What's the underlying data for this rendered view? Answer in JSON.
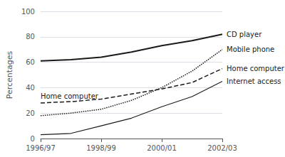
{
  "chart_data": {
    "type": "line",
    "categories": [
      "1996/97",
      null,
      "1998/99",
      null,
      "2000/01",
      null,
      "2002/03"
    ],
    "series": [
      {
        "name": "CD player",
        "color": "#1a1a1a",
        "line_style": "solid",
        "values": [
          61,
          62,
          64,
          68,
          73,
          77,
          82
        ]
      },
      {
        "name": "Mobile phone",
        "color": "#1a1a1a",
        "line_style": "dotted",
        "values": [
          18,
          20,
          23,
          30,
          40,
          53,
          70
        ]
      },
      {
        "name": "Home computer",
        "color": "#1a1a1a",
        "line_style": "dashed",
        "values": [
          28,
          29,
          31,
          35,
          39,
          44,
          55
        ]
      },
      {
        "name": "Internet access",
        "color": "#1a1a1a",
        "line_style": "solid",
        "values": [
          3,
          4,
          10,
          16,
          25,
          33,
          45
        ]
      }
    ],
    "annotations": [
      {
        "text": "Home computer",
        "series": "Home computer",
        "x": "1996/97"
      }
    ],
    "ylabel": "Percentages",
    "ylim": [
      0,
      100
    ],
    "yticks": [
      0,
      20,
      40,
      60,
      80,
      100
    ],
    "grid": true
  }
}
